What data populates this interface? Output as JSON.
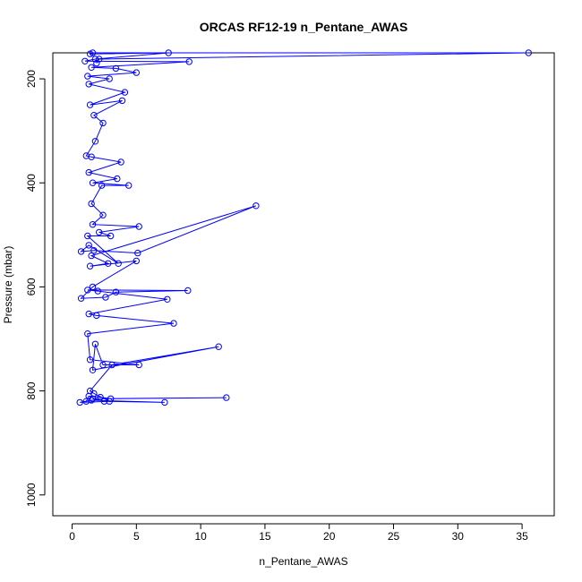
{
  "chart_data": {
    "type": "line",
    "title": "ORCAS RF12-19 n_Pentane_AWAS",
    "xlabel": "n_Pentane_AWAS",
    "ylabel": "Pressure (mbar)",
    "xlim": [
      -1.5,
      37.5
    ],
    "ylim": [
      1040,
      150
    ],
    "y_reversed": true,
    "x_ticks": [
      0,
      5,
      10,
      15,
      20,
      25,
      30,
      35
    ],
    "y_ticks": [
      200,
      400,
      600,
      800,
      1000
    ],
    "grid": false,
    "legend": "none",
    "series_color": "#0000ff",
    "markers": "open-circle",
    "series": [
      {
        "values": [
          [
            1.1,
            820
          ],
          [
            1.3,
            810
          ],
          [
            2.2,
            812
          ],
          [
            3.0,
            815
          ],
          [
            12.0,
            813
          ],
          [
            1.6,
            815
          ],
          [
            2.5,
            820
          ],
          [
            7.2,
            822
          ],
          [
            1.5,
            818
          ],
          [
            0.6,
            822
          ],
          [
            2.9,
            820
          ],
          [
            1.7,
            805
          ],
          [
            1.4,
            800
          ],
          [
            3.1,
            750
          ],
          [
            11.4,
            715
          ],
          [
            1.6,
            760
          ],
          [
            1.8,
            710
          ],
          [
            2.4,
            750
          ],
          [
            5.2,
            750
          ],
          [
            1.4,
            740
          ],
          [
            1.2,
            690
          ],
          [
            7.9,
            670
          ],
          [
            1.9,
            655
          ],
          [
            1.3,
            652
          ],
          [
            7.4,
            624
          ],
          [
            2.0,
            608
          ],
          [
            1.2,
            606
          ],
          [
            9.0,
            607
          ],
          [
            3.4,
            610
          ],
          [
            2.6,
            620
          ],
          [
            0.7,
            622
          ],
          [
            1.6,
            600
          ],
          [
            5.0,
            550
          ],
          [
            1.4,
            560
          ],
          [
            2.8,
            555
          ],
          [
            1.5,
            540
          ],
          [
            14.3,
            444
          ],
          [
            5.1,
            535
          ],
          [
            1.7,
            530
          ],
          [
            0.7,
            532
          ],
          [
            1.3,
            520
          ],
          [
            3.6,
            555
          ],
          [
            1.2,
            502
          ],
          [
            3.0,
            502
          ],
          [
            2.1,
            495
          ],
          [
            5.2,
            484
          ],
          [
            1.6,
            480
          ],
          [
            2.4,
            462
          ],
          [
            1.5,
            440
          ],
          [
            2.3,
            405
          ],
          [
            4.4,
            405
          ],
          [
            1.6,
            400
          ],
          [
            3.5,
            392
          ],
          [
            1.3,
            380
          ],
          [
            3.8,
            360
          ],
          [
            1.5,
            350
          ],
          [
            1.1,
            348
          ],
          [
            1.8,
            320
          ],
          [
            2.4,
            285
          ],
          [
            1.7,
            270
          ],
          [
            3.9,
            242
          ],
          [
            1.4,
            250
          ],
          [
            4.1,
            226
          ],
          [
            1.3,
            210
          ],
          [
            2.9,
            200
          ],
          [
            1.2,
            195
          ],
          [
            5.0,
            188
          ],
          [
            3.4,
            180
          ],
          [
            1.5,
            178
          ],
          [
            9.1,
            167
          ],
          [
            1.0,
            166
          ],
          [
            1.8,
            162
          ],
          [
            7.5,
            150
          ],
          [
            1.4,
            152
          ],
          [
            1.6,
            150
          ],
          [
            35.5,
            150
          ],
          [
            2.1,
            162
          ],
          [
            1.9,
            170
          ]
        ]
      }
    ]
  }
}
